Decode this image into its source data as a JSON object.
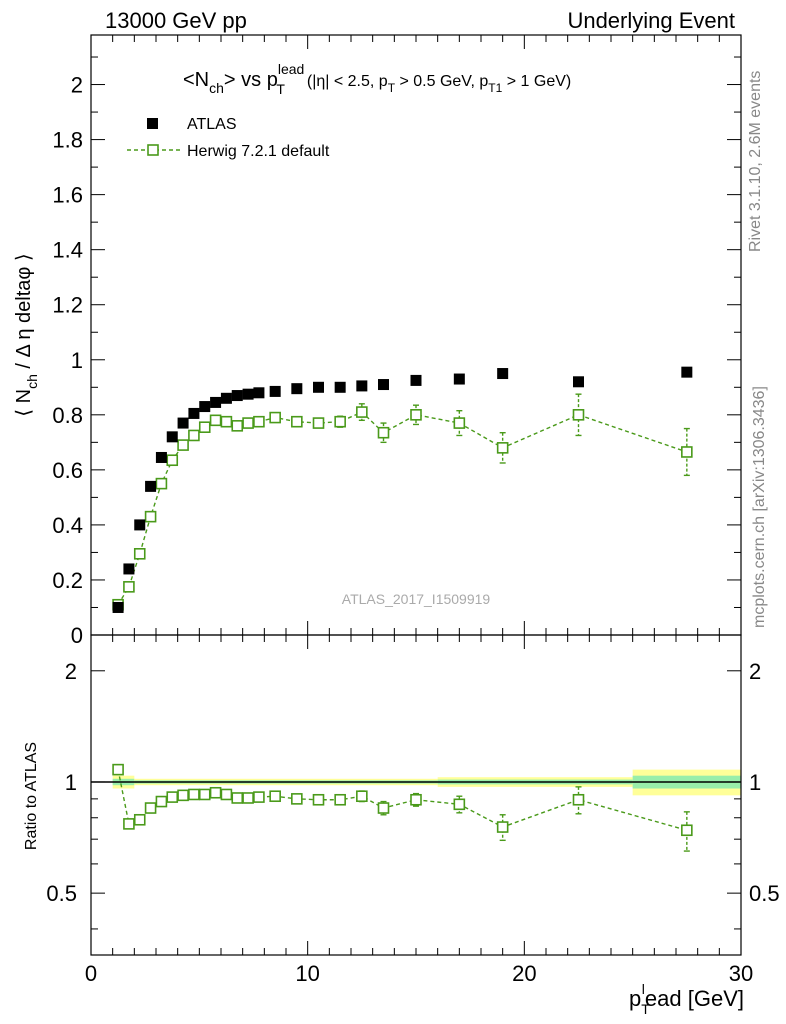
{
  "header": {
    "left": "13000 GeV pp",
    "right": "Underlying Event"
  },
  "side_labels": {
    "rivet": "Rivet 3.1.10,  2.6M events",
    "mcplots": "mcplots.cern.ch [arXiv:1306.3436]"
  },
  "analysis_id": "ATLAS_2017_I1509919",
  "colors": {
    "data": "#000000",
    "mc": "#4a9a1a",
    "band_outer": "#ffff99",
    "band_inner": "#99eeaa"
  },
  "chart_data": [
    {
      "type": "scatter",
      "panel": "main",
      "title": "<N_ch> vs p_T^lead (|η| < 2.5, p_T > 0.5 GeV, p_T1 > 1 GeV)",
      "title_parts": {
        "main": "<N",
        "sub_ch": "ch",
        "vs": "> vs p",
        "sup_lead": "lead",
        "sub_T": "T",
        "paren_open": "(|η| < 2.5, p",
        "paren_sub_T": "T",
        "paren_mid": " > 0.5 GeV, p",
        "paren_sub_T1": "T1",
        "paren_end": " > 1 GeV)"
      },
      "ylabel": "⟨ N_ch / Δ η deltaφ ⟩",
      "ylabel_parts": {
        "pre": "⟨ N",
        "sub": "ch",
        "post": " / Δ η deltaφ ⟩"
      },
      "xlim": [
        0,
        30
      ],
      "ylim": [
        0,
        2.18
      ],
      "yticks": [
        0,
        0.2,
        0.4,
        0.6,
        0.8,
        1,
        1.2,
        1.4,
        1.6,
        1.8,
        2
      ],
      "ytick_labels": [
        "0",
        "0.2",
        "0.4",
        "0.6",
        "0.8",
        "1",
        "1.2",
        "1.4",
        "1.6",
        "1.8",
        "2"
      ],
      "legend_position": "top-left",
      "series": [
        {
          "name": "ATLAS",
          "marker": "filled-square",
          "x": [
            1.25,
            1.75,
            2.25,
            2.75,
            3.25,
            3.75,
            4.25,
            4.75,
            5.25,
            5.75,
            6.25,
            6.75,
            7.25,
            7.75,
            8.5,
            9.5,
            10.5,
            11.5,
            12.5,
            13.5,
            15,
            17,
            19,
            22.5,
            27.5
          ],
          "y": [
            0.1,
            0.24,
            0.4,
            0.54,
            0.645,
            0.72,
            0.77,
            0.805,
            0.83,
            0.845,
            0.86,
            0.87,
            0.875,
            0.88,
            0.885,
            0.895,
            0.9,
            0.9,
            0.905,
            0.91,
            0.925,
            0.93,
            0.95,
            0.92,
            0.955
          ]
        },
        {
          "name": "Herwig 7.2.1 default",
          "marker": "open-square-dashed",
          "x": [
            1.25,
            1.75,
            2.25,
            2.75,
            3.25,
            3.75,
            4.25,
            4.75,
            5.25,
            5.75,
            6.25,
            6.75,
            7.25,
            7.75,
            8.5,
            9.5,
            10.5,
            11.5,
            12.5,
            13.5,
            15,
            17,
            19,
            22.5,
            27.5
          ],
          "y": [
            0.11,
            0.175,
            0.295,
            0.43,
            0.55,
            0.635,
            0.69,
            0.725,
            0.755,
            0.78,
            0.775,
            0.76,
            0.77,
            0.775,
            0.79,
            0.775,
            0.77,
            0.775,
            0.81,
            0.735,
            0.8,
            0.77,
            0.68,
            0.8,
            0.665
          ],
          "yerr": [
            0.005,
            0.005,
            0.006,
            0.007,
            0.008,
            0.008,
            0.008,
            0.008,
            0.008,
            0.008,
            0.009,
            0.009,
            0.01,
            0.01,
            0.012,
            0.014,
            0.016,
            0.02,
            0.03,
            0.035,
            0.035,
            0.045,
            0.055,
            0.075,
            0.085
          ]
        }
      ]
    },
    {
      "type": "scatter",
      "panel": "ratio",
      "ylabel": "Ratio to ATLAS",
      "xlabel": "p_T^lead [GeV]",
      "xlabel_parts": {
        "p": "p",
        "sub": "T",
        "sup": "l",
        "rest": "ead [GeV]"
      },
      "xlim": [
        0,
        30
      ],
      "ylim": [
        0.34,
        2.5
      ],
      "log_scale": true,
      "xticks": [
        0,
        10,
        20,
        30
      ],
      "xtick_labels": [
        "0",
        "10",
        "20",
        "30"
      ],
      "yticks": [
        0.5,
        1,
        2
      ],
      "ytick_labels": [
        "0.5",
        "1",
        "2"
      ],
      "reference_line": 1,
      "band": [
        {
          "x0": 1.0,
          "x1": 2.0,
          "outer": 0.04,
          "inner": 0.02
        },
        {
          "x0": 2.0,
          "x1": 16.0,
          "outer": 0.02,
          "inner": 0.01
        },
        {
          "x0": 16.0,
          "x1": 25.0,
          "outer": 0.03,
          "inner": 0.015
        },
        {
          "x0": 25.0,
          "x1": 30.0,
          "outer": 0.08,
          "inner": 0.04
        }
      ],
      "series": [
        {
          "name": "Herwig 7.2.1 default",
          "x": [
            1.25,
            1.75,
            2.25,
            2.75,
            3.25,
            3.75,
            4.25,
            4.75,
            5.25,
            5.75,
            6.25,
            6.75,
            7.25,
            7.75,
            8.5,
            9.5,
            10.5,
            11.5,
            12.5,
            13.5,
            15,
            17,
            19,
            22.5,
            27.5
          ],
          "y": [
            1.08,
            0.77,
            0.79,
            0.85,
            0.885,
            0.91,
            0.92,
            0.925,
            0.925,
            0.935,
            0.925,
            0.905,
            0.905,
            0.91,
            0.915,
            0.9,
            0.895,
            0.895,
            0.915,
            0.85,
            0.895,
            0.87,
            0.755,
            0.895,
            0.74
          ],
          "yerr": [
            0.02,
            0.01,
            0.01,
            0.01,
            0.01,
            0.01,
            0.01,
            0.01,
            0.01,
            0.01,
            0.01,
            0.01,
            0.01,
            0.01,
            0.015,
            0.016,
            0.018,
            0.022,
            0.03,
            0.035,
            0.035,
            0.045,
            0.06,
            0.075,
            0.09
          ]
        }
      ]
    }
  ]
}
